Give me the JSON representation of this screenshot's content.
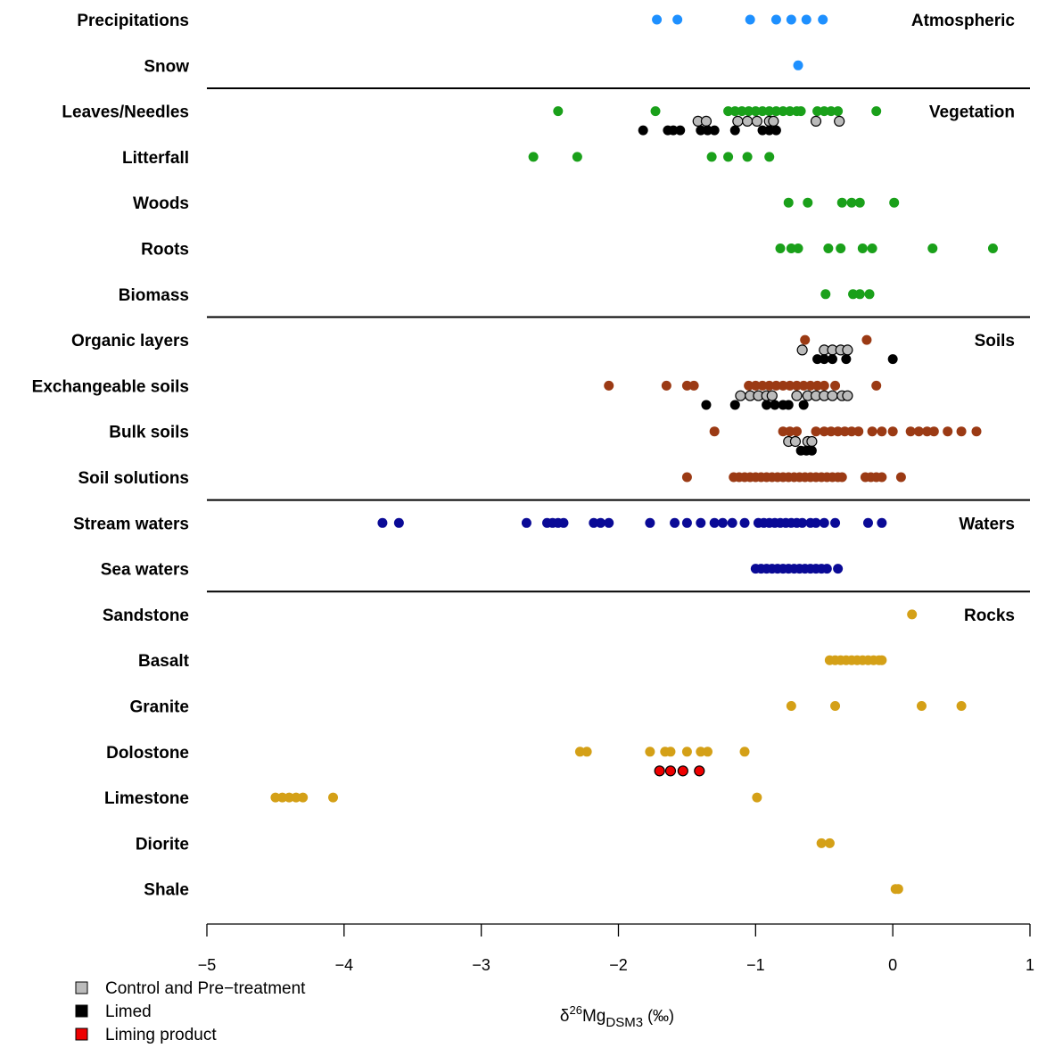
{
  "chart_data": {
    "type": "scatter",
    "xlabel": {
      "base": "δ",
      "sup": "26",
      "main": "Mg",
      "sub": "DSM3",
      "unit": " (‰)"
    },
    "xlim": [
      -5,
      1
    ],
    "xticks": [
      -5,
      -4,
      -3,
      -2,
      -1,
      0,
      1
    ],
    "xtick_labels": [
      "−5",
      "−4",
      "−3",
      "−2",
      "−1",
      "0",
      "1"
    ],
    "categories": [
      "Precipitations",
      "Snow",
      "Leaves/Needles",
      "Litterfall",
      "Woods",
      "Roots",
      "Biomass",
      "Organic layers",
      "Exchangeable soils",
      "Bulk soils",
      "Soil solutions",
      "Stream waters",
      "Sea waters",
      "Sandstone",
      "Basalt",
      "Granite",
      "Dolostone",
      "Limestone",
      "Diorite",
      "Shale"
    ],
    "groups": [
      {
        "label": "Atmospheric",
        "first": 0,
        "last": 1
      },
      {
        "label": "Vegetation",
        "first": 2,
        "last": 6
      },
      {
        "label": "Soils",
        "first": 7,
        "last": 10
      },
      {
        "label": "Waters",
        "first": 11,
        "last": 12
      },
      {
        "label": "Rocks",
        "first": 13,
        "last": 19
      }
    ],
    "series": [
      {
        "cat": 0,
        "offset": 0,
        "color": "#1e90ff",
        "edge": "none",
        "values": [
          -1.72,
          -1.57,
          -1.04,
          -0.85,
          -0.74,
          -0.63,
          -0.51
        ]
      },
      {
        "cat": 1,
        "offset": 0,
        "color": "#1e90ff",
        "edge": "none",
        "values": [
          -0.69
        ]
      },
      {
        "cat": 2,
        "offset": 0,
        "color": "#1aa01a",
        "edge": "none",
        "values": [
          -2.44,
          -1.73,
          -1.2,
          -1.15,
          -1.1,
          -1.05,
          -1.0,
          -0.95,
          -0.9,
          -0.85,
          -0.8,
          -0.75,
          -0.7,
          -0.67,
          -0.55,
          -0.5,
          -0.45,
          -0.4,
          -0.12
        ]
      },
      {
        "cat": 2,
        "offset": 0.22,
        "color": "#bbbbbb",
        "edge": "#000000",
        "values": [
          -1.42,
          -1.36,
          -1.13,
          -1.06,
          -0.99,
          -0.9,
          -0.87,
          -0.56,
          -0.39
        ]
      },
      {
        "cat": 2,
        "offset": 0.42,
        "color": "#000000",
        "edge": "none",
        "values": [
          -1.82,
          -1.64,
          -1.6,
          -1.55,
          -1.4,
          -1.35,
          -1.3,
          -1.15,
          -0.95,
          -0.9,
          -0.85
        ]
      },
      {
        "cat": 3,
        "offset": 0,
        "color": "#1aa01a",
        "edge": "none",
        "values": [
          -2.62,
          -2.3,
          -1.32,
          -1.2,
          -1.06,
          -0.9
        ]
      },
      {
        "cat": 4,
        "offset": 0,
        "color": "#1aa01a",
        "edge": "none",
        "values": [
          -0.76,
          -0.62,
          -0.37,
          -0.3,
          -0.24,
          0.01
        ]
      },
      {
        "cat": 5,
        "offset": 0,
        "color": "#1aa01a",
        "edge": "none",
        "values": [
          -0.82,
          -0.74,
          -0.69,
          -0.47,
          -0.38,
          -0.22,
          -0.15,
          0.29,
          0.73
        ]
      },
      {
        "cat": 6,
        "offset": 0,
        "color": "#1aa01a",
        "edge": "none",
        "values": [
          -0.49,
          -0.29,
          -0.24,
          -0.17
        ]
      },
      {
        "cat": 7,
        "offset": 0,
        "color": "#9b3a14",
        "edge": "none",
        "values": [
          -0.64,
          -0.19
        ]
      },
      {
        "cat": 7,
        "offset": 0.22,
        "color": "#bbbbbb",
        "edge": "#000000",
        "values": [
          -0.66,
          -0.5,
          -0.44,
          -0.38,
          -0.33
        ]
      },
      {
        "cat": 7,
        "offset": 0.42,
        "color": "#000000",
        "edge": "none",
        "values": [
          -0.55,
          -0.5,
          -0.44,
          -0.34,
          0.0
        ]
      },
      {
        "cat": 8,
        "offset": 0,
        "color": "#9b3a14",
        "edge": "none",
        "values": [
          -2.07,
          -1.65,
          -1.5,
          -1.45,
          -1.05,
          -1.0,
          -0.95,
          -0.9,
          -0.85,
          -0.8,
          -0.75,
          -0.7,
          -0.65,
          -0.6,
          -0.55,
          -0.5,
          -0.42,
          -0.12
        ]
      },
      {
        "cat": 8,
        "offset": 0.22,
        "color": "#bbbbbb",
        "edge": "#000000",
        "values": [
          -1.11,
          -1.04,
          -0.98,
          -0.92,
          -0.88,
          -0.7,
          -0.62,
          -0.56,
          -0.5,
          -0.44,
          -0.37,
          -0.33
        ]
      },
      {
        "cat": 8,
        "offset": 0.42,
        "color": "#000000",
        "edge": "none",
        "values": [
          -1.36,
          -1.15,
          -0.92,
          -0.86,
          -0.8,
          -0.76,
          -0.65
        ]
      },
      {
        "cat": 9,
        "offset": 0,
        "color": "#9b3a14",
        "edge": "none",
        "values": [
          -1.3,
          -0.8,
          -0.75,
          -0.7,
          -0.56,
          -0.5,
          -0.45,
          -0.4,
          -0.35,
          -0.3,
          -0.25,
          -0.15,
          -0.08,
          0.0,
          0.13,
          0.19,
          0.25,
          0.3,
          0.4,
          0.5,
          0.61
        ]
      },
      {
        "cat": 9,
        "offset": 0.22,
        "color": "#bbbbbb",
        "edge": "#000000",
        "values": [
          -0.76,
          -0.71,
          -0.62,
          -0.59
        ]
      },
      {
        "cat": 9,
        "offset": 0.42,
        "color": "#000000",
        "edge": "none",
        "values": [
          -0.67,
          -0.63,
          -0.59
        ]
      },
      {
        "cat": 10,
        "offset": 0,
        "color": "#9b3a14",
        "edge": "none",
        "values": [
          -1.5,
          -1.16,
          -1.12,
          -1.08,
          -1.04,
          -1.0,
          -0.96,
          -0.92,
          -0.88,
          -0.84,
          -0.8,
          -0.76,
          -0.72,
          -0.68,
          -0.64,
          -0.6,
          -0.56,
          -0.52,
          -0.48,
          -0.44,
          -0.4,
          -0.37,
          -0.2,
          -0.16,
          -0.12,
          -0.08,
          0.06
        ]
      },
      {
        "cat": 11,
        "offset": 0,
        "color": "#0a0a96",
        "edge": "none",
        "values": [
          -3.72,
          -3.6,
          -2.67,
          -2.52,
          -2.48,
          -2.44,
          -2.4,
          -2.18,
          -2.13,
          -2.07,
          -1.77,
          -1.59,
          -1.5,
          -1.4,
          -1.3,
          -1.24,
          -1.17,
          -1.08,
          -0.98,
          -0.94,
          -0.9,
          -0.86,
          -0.82,
          -0.78,
          -0.74,
          -0.7,
          -0.66,
          -0.6,
          -0.56,
          -0.5,
          -0.42,
          -0.18,
          -0.08
        ]
      },
      {
        "cat": 12,
        "offset": 0,
        "color": "#0a0a96",
        "edge": "none",
        "values": [
          -1.0,
          -0.96,
          -0.92,
          -0.88,
          -0.84,
          -0.8,
          -0.76,
          -0.72,
          -0.68,
          -0.64,
          -0.6,
          -0.56,
          -0.52,
          -0.48,
          -0.4
        ]
      },
      {
        "cat": 13,
        "offset": 0,
        "color": "#d4a017",
        "edge": "none",
        "values": [
          0.14
        ]
      },
      {
        "cat": 14,
        "offset": 0,
        "color": "#d4a017",
        "edge": "none",
        "values": [
          -0.46,
          -0.42,
          -0.38,
          -0.34,
          -0.3,
          -0.26,
          -0.22,
          -0.18,
          -0.14,
          -0.1,
          -0.08
        ]
      },
      {
        "cat": 15,
        "offset": 0,
        "color": "#d4a017",
        "edge": "none",
        "values": [
          -0.74,
          -0.42,
          0.21,
          0.5
        ]
      },
      {
        "cat": 16,
        "offset": 0,
        "color": "#d4a017",
        "edge": "none",
        "values": [
          -2.28,
          -2.23,
          -1.77,
          -1.66,
          -1.62,
          -1.5,
          -1.4,
          -1.35,
          -1.08
        ]
      },
      {
        "cat": 16,
        "offset": 0.42,
        "color": "#ee0000",
        "edge": "#000000",
        "values": [
          -1.7,
          -1.62,
          -1.53,
          -1.41
        ]
      },
      {
        "cat": 17,
        "offset": 0,
        "color": "#d4a017",
        "edge": "none",
        "values": [
          -4.5,
          -4.45,
          -4.4,
          -4.35,
          -4.3,
          -4.08,
          -0.99
        ]
      },
      {
        "cat": 18,
        "offset": 0,
        "color": "#d4a017",
        "edge": "none",
        "values": [
          -0.52,
          -0.46
        ]
      },
      {
        "cat": 19,
        "offset": 0,
        "color": "#d4a017",
        "edge": "none",
        "values": [
          0.02,
          0.04
        ]
      }
    ],
    "legend": [
      {
        "label": "Control and Pre−treatment",
        "color": "#bbbbbb"
      },
      {
        "label": "Limed",
        "color": "#000000"
      },
      {
        "label": "Liming product",
        "color": "#ee0000"
      }
    ]
  }
}
